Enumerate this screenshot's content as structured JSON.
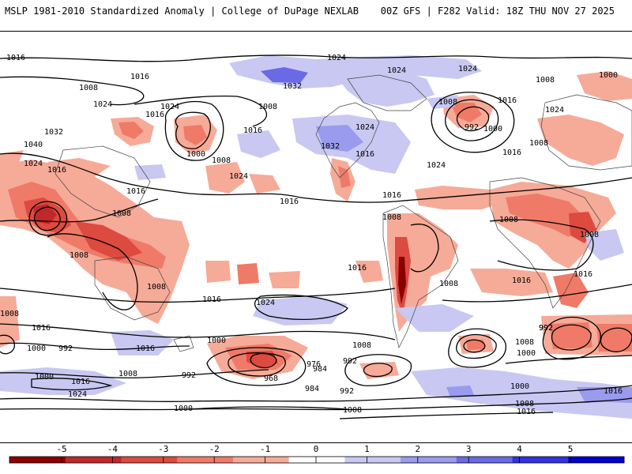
{
  "header": {
    "title": "MSLP 1981-2010 Standardized Anomaly | College of DuPage NEXLAB",
    "run_info": "00Z GFS | F282 Valid: 18Z THU NOV 27 2025"
  },
  "colorbar": {
    "ticks": [
      "-5",
      "-4",
      "-3",
      "-2",
      "-1",
      "0",
      "1",
      "2",
      "3",
      "4",
      "5"
    ],
    "colors": [
      "#8b0000",
      "#c0282c",
      "#dc4a40",
      "#ef7a68",
      "#f6aa98",
      "#ffffff",
      "#c8c8f2",
      "#9a9aee",
      "#6a6ae6",
      "#3232e0",
      "#0000cc"
    ]
  },
  "contour_labels": [
    "1016",
    "1024",
    "1024",
    "1024",
    "1016",
    "1000",
    "1008",
    "1008",
    "1016",
    "1008",
    "1024",
    "1024",
    "1016",
    "1008",
    "992",
    "1016",
    "1000",
    "1032",
    "1032",
    "1024",
    "1016",
    "1040",
    "1000",
    "1024",
    "1008",
    "1024",
    "1016",
    "1008",
    "1032",
    "1024",
    "1016",
    "1016",
    "1016",
    "1024",
    "1008",
    "1008",
    "1008",
    "1016",
    "1008",
    "1016",
    "1008",
    "1024",
    "1008",
    "1016",
    "1016",
    "1008",
    "1016",
    "1000",
    "992",
    "1016",
    "1008",
    "992",
    "1008",
    "1016",
    "976",
    "984",
    "992",
    "968",
    "984",
    "992",
    "1008",
    "1000",
    "992",
    "1008",
    "1000",
    "1016",
    "1024",
    "992",
    "1000",
    "1000",
    "1008",
    "1016",
    "1016",
    "1000",
    "1008"
  ]
}
